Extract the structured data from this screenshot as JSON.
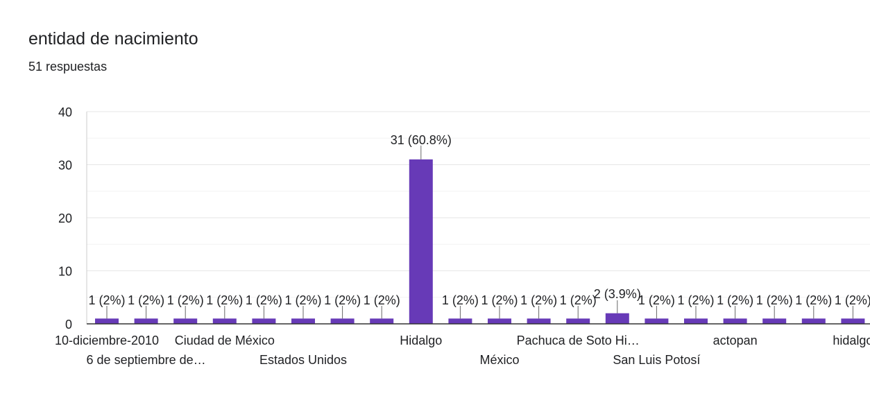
{
  "question": {
    "title": "entidad de nacimiento",
    "responses": "51 respuestas"
  },
  "colors": {
    "bar": "#673ab7",
    "grid": "#e8e8e8",
    "axis": "#333333",
    "text": "#202124"
  },
  "chart_data": {
    "type": "bar",
    "title": "entidad de nacimiento",
    "xlabel": "",
    "ylabel": "",
    "ylim": [
      0,
      40
    ],
    "yticks": [
      0,
      10,
      20,
      30,
      40
    ],
    "grid": true,
    "legend": "none",
    "categories": [
      "10-diciembre-2010",
      "6 de septiembre de…",
      "",
      "Ciudad de México",
      "",
      "Estados Unidos",
      "",
      "",
      "Hidalgo",
      "",
      "México",
      "",
      "Pachuca de Soto Hi…",
      "",
      "San Luis Potosí",
      "",
      "actopan",
      "",
      "",
      "hidalgo"
    ],
    "values": [
      1,
      1,
      1,
      1,
      1,
      1,
      1,
      1,
      31,
      1,
      1,
      1,
      1,
      2,
      1,
      1,
      1,
      1,
      1,
      1
    ],
    "data_labels": [
      "1 (2%)",
      "1 (2%)",
      "1 (2%)",
      "1 (2%)",
      "1 (2%)",
      "1 (2%)",
      "1 (2%)",
      "1 (2%)",
      "31 (60.8%)",
      "1 (2%)",
      "1 (2%)",
      "1 (2%)",
      "1 (2%)",
      "2 (3.9%)",
      "1 (2%)",
      "1 (2%)",
      "1 (2%)",
      "1 (2%)",
      "1 (2%)",
      "1 (2%)"
    ]
  }
}
